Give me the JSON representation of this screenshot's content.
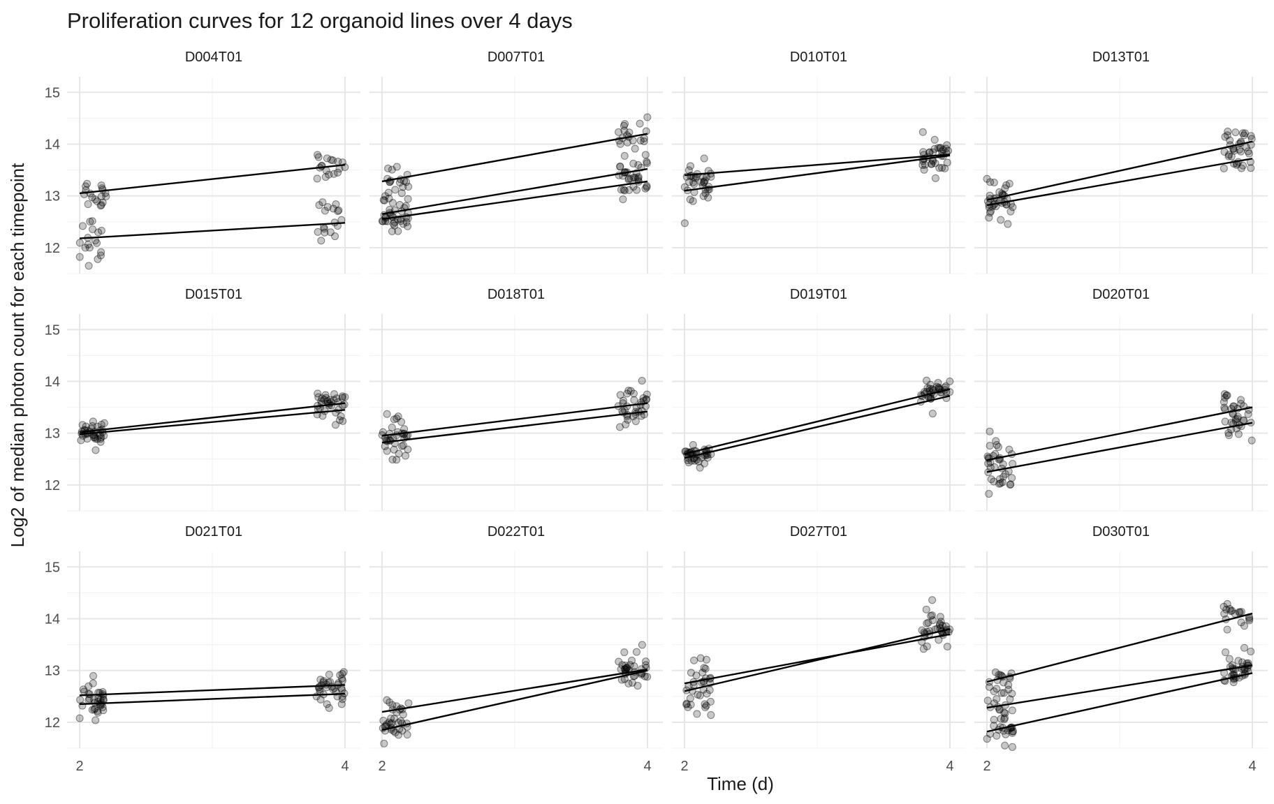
{
  "chart_data": {
    "type": "scatter",
    "title": "Proliferation curves for 12 organoid lines over 4 days",
    "xlabel": "Time (d)",
    "ylabel": "Log2 of median photon count for each timepoint",
    "xlim": [
      2,
      4
    ],
    "ylim": [
      11.5,
      15.3
    ],
    "x_ticks": [
      2,
      4
    ],
    "y_ticks": [
      12,
      13,
      14,
      15
    ],
    "facet_layout": {
      "ncol": 4,
      "nrow": 3,
      "shared_axes": true
    },
    "grid": true,
    "legend": "none",
    "panels": [
      {
        "name": "D004T01",
        "groups": [
          {
            "y2": 13.05,
            "y4": 13.6,
            "spread": 0.15
          },
          {
            "y2": 12.18,
            "y4": 12.48,
            "spread": 0.22
          }
        ]
      },
      {
        "name": "D007T01",
        "groups": [
          {
            "y2": 13.28,
            "y4": 14.2,
            "spread": 0.15
          },
          {
            "y2": 12.65,
            "y4": 13.52,
            "spread": 0.18
          },
          {
            "y2": 12.55,
            "y4": 13.28,
            "spread": 0.15
          }
        ]
      },
      {
        "name": "D010T01",
        "groups": [
          {
            "y2": 13.4,
            "y4": 13.8,
            "spread": 0.15
          },
          {
            "y2": 13.1,
            "y4": 13.78,
            "spread": 0.18
          }
        ]
      },
      {
        "name": "D013T01",
        "groups": [
          {
            "y2": 12.92,
            "y4": 14.05,
            "spread": 0.15
          },
          {
            "y2": 12.82,
            "y4": 13.72,
            "spread": 0.15
          }
        ]
      },
      {
        "name": "D015T01",
        "groups": [
          {
            "y2": 13.02,
            "y4": 13.58,
            "spread": 0.12
          },
          {
            "y2": 12.98,
            "y4": 13.45,
            "spread": 0.12
          }
        ]
      },
      {
        "name": "D018T01",
        "groups": [
          {
            "y2": 12.95,
            "y4": 13.58,
            "spread": 0.18
          },
          {
            "y2": 12.82,
            "y4": 13.42,
            "spread": 0.18
          }
        ]
      },
      {
        "name": "D019T01",
        "groups": [
          {
            "y2": 12.6,
            "y4": 13.85,
            "spread": 0.12
          },
          {
            "y2": 12.52,
            "y4": 13.72,
            "spread": 0.12
          }
        ]
      },
      {
        "name": "D020T01",
        "groups": [
          {
            "y2": 12.48,
            "y4": 13.5,
            "spread": 0.18
          },
          {
            "y2": 12.25,
            "y4": 13.2,
            "spread": 0.22
          }
        ]
      },
      {
        "name": "D021T01",
        "groups": [
          {
            "y2": 12.52,
            "y4": 12.72,
            "spread": 0.15
          },
          {
            "y2": 12.35,
            "y4": 12.55,
            "spread": 0.15
          }
        ]
      },
      {
        "name": "D022T01",
        "groups": [
          {
            "y2": 12.2,
            "y4": 13.02,
            "spread": 0.15
          },
          {
            "y2": 11.85,
            "y4": 13.0,
            "spread": 0.15
          }
        ]
      },
      {
        "name": "D027T01",
        "groups": [
          {
            "y2": 12.75,
            "y4": 13.7,
            "spread": 0.22
          },
          {
            "y2": 12.6,
            "y4": 13.8,
            "spread": 0.22
          }
        ]
      },
      {
        "name": "D030T01",
        "groups": [
          {
            "y2": 12.78,
            "y4": 14.1,
            "spread": 0.18
          },
          {
            "y2": 12.28,
            "y4": 13.1,
            "spread": 0.18
          },
          {
            "y2": 11.82,
            "y4": 12.95,
            "spread": 0.15
          }
        ]
      }
    ]
  }
}
